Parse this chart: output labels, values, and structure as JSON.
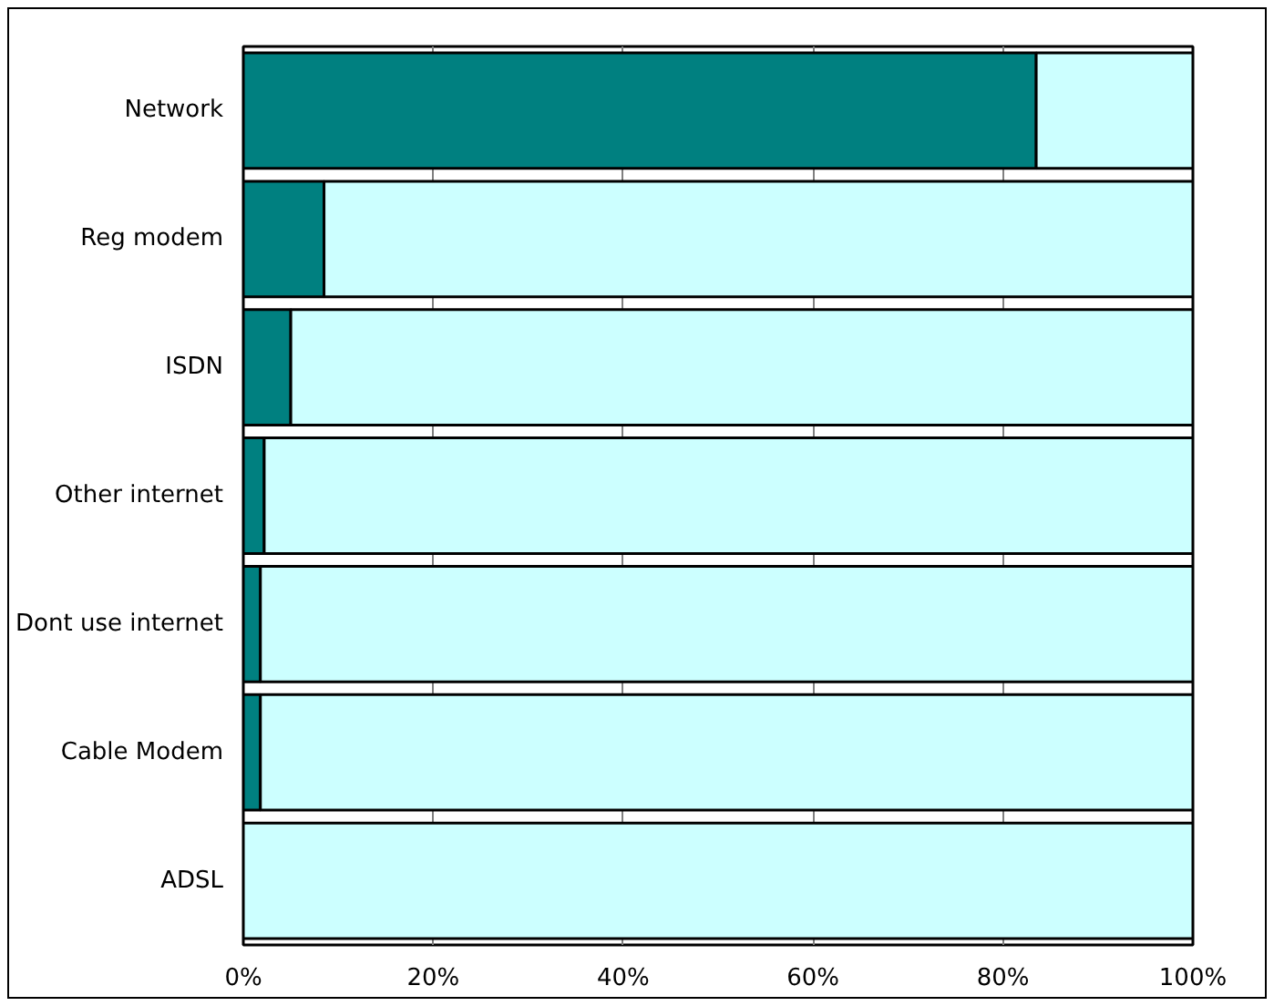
{
  "chart_data": {
    "type": "bar",
    "orientation": "horizontal",
    "stacked": true,
    "categories": [
      "Network",
      "Reg modem",
      "ISDN",
      "Other internet",
      "Dont use internet",
      "Cable Modem",
      "ADSL"
    ],
    "series": [
      {
        "color": "#008080",
        "values": [
          83.5,
          8.5,
          5,
          2.2,
          1.8,
          1.8,
          0
        ]
      },
      {
        "color": "#ccffff",
        "values": [
          16.5,
          91.5,
          95,
          97.8,
          98.2,
          98.2,
          100
        ]
      }
    ],
    "xlim": [
      0,
      100
    ],
    "xticks": [
      {
        "value": 0,
        "label": "0%"
      },
      {
        "value": 20,
        "label": "20%"
      },
      {
        "value": 40,
        "label": "40%"
      },
      {
        "value": 60,
        "label": "60%"
      },
      {
        "value": 80,
        "label": "80%"
      },
      {
        "value": 100,
        "label": "100%"
      }
    ],
    "grid": "x"
  }
}
